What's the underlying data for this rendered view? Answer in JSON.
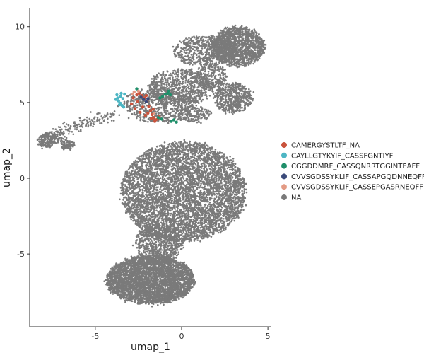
{
  "chart_data": {
    "type": "scatter",
    "title": "",
    "xlabel": "umap_1",
    "ylabel": "umap_2",
    "xlim": [
      -8.8,
      5.2
    ],
    "ylim": [
      -9.8,
      11.2
    ],
    "x_ticks": [
      -5,
      0,
      5
    ],
    "x_tick_labels": [
      "-5",
      "0",
      "5"
    ],
    "y_ticks": [
      -5,
      0,
      5,
      10
    ],
    "y_tick_labels": [
      "-5",
      "0",
      "5",
      "10"
    ],
    "grid": false,
    "legend_position": "right",
    "series": [
      {
        "name": "CAMERGYSTLTF_NA",
        "color": "#c9533c",
        "points": [
          [
            -2.6,
            5.5
          ],
          [
            -2.45,
            5.6
          ],
          [
            -2.3,
            5.45
          ],
          [
            -2.15,
            5.3
          ],
          [
            -2.0,
            5.05
          ],
          [
            -1.9,
            4.75
          ],
          [
            -1.8,
            4.45
          ],
          [
            -1.7,
            4.2
          ],
          [
            -1.6,
            4.0
          ],
          [
            -1.5,
            3.85
          ],
          [
            -1.4,
            3.9
          ],
          [
            -1.55,
            3.75
          ],
          [
            -1.75,
            3.95
          ],
          [
            -2.1,
            4.15
          ],
          [
            -2.4,
            4.35
          ],
          [
            -2.7,
            4.6
          ],
          [
            -2.9,
            4.9
          ],
          [
            -2.8,
            5.3
          ],
          [
            -2.55,
            5.05
          ],
          [
            -2.25,
            4.7
          ],
          [
            -1.95,
            4.3
          ],
          [
            -1.3,
            4.05
          ],
          [
            -1.65,
            4.55
          ],
          [
            -2.05,
            5.45
          ]
        ]
      },
      {
        "name": "CAYLLGTYKYIF_CASSFGNTIYF",
        "color": "#4db6c4",
        "points": [
          [
            -3.75,
            5.5
          ],
          [
            -3.7,
            5.3
          ],
          [
            -3.65,
            5.1
          ],
          [
            -3.55,
            4.95
          ],
          [
            -3.45,
            4.8
          ],
          [
            -3.35,
            4.7
          ],
          [
            -3.55,
            5.4
          ],
          [
            -3.4,
            5.25
          ],
          [
            -3.6,
            4.85
          ],
          [
            -3.8,
            5.2
          ],
          [
            -3.3,
            5.55
          ],
          [
            -3.5,
            5.6
          ]
        ]
      },
      {
        "name": "CGGDDMRF_CASSQNRRTGGINTEAFF",
        "color": "#1f8f6a",
        "points": [
          [
            -1.1,
            5.4
          ],
          [
            -0.95,
            5.55
          ],
          [
            -0.8,
            5.6
          ],
          [
            -0.65,
            5.5
          ],
          [
            -1.25,
            5.3
          ],
          [
            -0.6,
            3.75
          ],
          [
            -0.3,
            3.7
          ],
          [
            -0.45,
            3.85
          ],
          [
            -1.35,
            4.0
          ],
          [
            -1.15,
            3.9
          ],
          [
            -2.6,
            5.9
          ],
          [
            -0.75,
            5.75
          ]
        ]
      },
      {
        "name": "CVVSGDSSYKLIF_CASSAPGQDNNEQFF",
        "color": "#3b4a7a",
        "points": [
          [
            -2.2,
            5.2
          ],
          [
            -2.05,
            5.05
          ],
          [
            -1.95,
            5.25
          ],
          [
            -2.35,
            5.35
          ]
        ]
      },
      {
        "name": "CVVSGDSSYKLIF_CASSEPGASRNEQFF",
        "color": "#e39a84",
        "points": [
          [
            -2.75,
            5.7
          ],
          [
            -2.85,
            5.55
          ],
          [
            -2.5,
            5.75
          ],
          [
            -1.6,
            4.25
          ]
        ]
      },
      {
        "name": "NA",
        "color": "#7a7a7a",
        "clusters": [
          {
            "type": "ellipse",
            "cx": -1.8,
            "cy": -6.7,
            "rx": 2.55,
            "ry": 1.6,
            "n": 3600
          },
          {
            "type": "ellipse",
            "cx": 0.1,
            "cy": -0.9,
            "rx": 3.6,
            "ry": 3.3,
            "n": 5000
          },
          {
            "type": "ellipse",
            "cx": -1.3,
            "cy": -4.3,
            "rx": 1.4,
            "ry": 1.3,
            "n": 700
          },
          {
            "type": "ellipse",
            "cx": 3.3,
            "cy": 8.7,
            "rx": 1.5,
            "ry": 1.3,
            "n": 1300
          },
          {
            "type": "ellipse",
            "cx": 1.3,
            "cy": 8.4,
            "rx": 1.8,
            "ry": 1.0,
            "n": 550
          },
          {
            "type": "ellipse",
            "cx": 3.0,
            "cy": 5.3,
            "rx": 1.1,
            "ry": 1.0,
            "n": 500
          },
          {
            "type": "ellipse",
            "cx": 0.0,
            "cy": 6.0,
            "rx": 1.9,
            "ry": 1.2,
            "n": 700
          },
          {
            "type": "ellipse",
            "cx": -1.3,
            "cy": 4.8,
            "rx": 2.0,
            "ry": 1.1,
            "n": 550
          },
          {
            "type": "ellipse",
            "cx": 1.7,
            "cy": 6.7,
            "rx": 0.9,
            "ry": 0.9,
            "n": 250
          },
          {
            "type": "ellipse",
            "cx": 0.7,
            "cy": 4.2,
            "rx": 1.0,
            "ry": 0.5,
            "n": 150
          },
          {
            "type": "ellipse",
            "cx": -7.8,
            "cy": 2.5,
            "rx": 0.5,
            "ry": 0.45,
            "n": 160
          },
          {
            "type": "ellipse",
            "cx": -6.6,
            "cy": 2.2,
            "rx": 0.35,
            "ry": 0.3,
            "n": 80
          },
          {
            "type": "line",
            "x0": -7.6,
            "y0": 2.9,
            "x1": -3.7,
            "y1": 4.3,
            "spread": 0.2,
            "n": 160
          },
          {
            "type": "line",
            "x0": -6.9,
            "y0": 2.4,
            "x1": -7.5,
            "y1": 2.8,
            "spread": 0.18,
            "n": 60
          }
        ]
      }
    ]
  }
}
